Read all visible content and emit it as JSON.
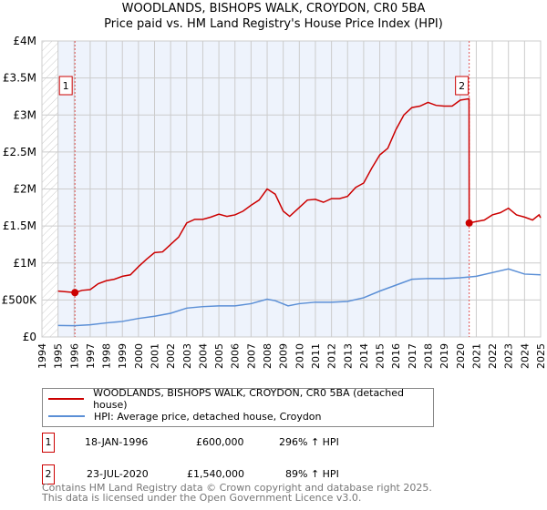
{
  "title": "WOODLANDS, BISHOPS WALK, CROYDON, CR0 5BA",
  "subtitle": "Price paid vs. HM Land Registry's House Price Index (HPI)",
  "chart_data": {
    "type": "line",
    "title": "WOODLANDS, BISHOPS WALK, CROYDON, CR0 5BA",
    "xlim": [
      1994,
      2025
    ],
    "ylim": [
      0,
      4000000
    ],
    "grid": true,
    "x_ticks": [
      "1994",
      "1995",
      "1996",
      "1997",
      "1998",
      "1999",
      "2000",
      "2001",
      "2002",
      "2003",
      "2004",
      "2005",
      "2006",
      "2007",
      "2008",
      "2009",
      "2010",
      "2011",
      "2012",
      "2013",
      "2014",
      "2015",
      "2016",
      "2017",
      "2018",
      "2019",
      "2020",
      "2021",
      "2022",
      "2023",
      "2024",
      "2025"
    ],
    "y_ticks": [
      {
        "v": 0,
        "label": "£0"
      },
      {
        "v": 500000,
        "label": "£500K"
      },
      {
        "v": 1000000,
        "label": "£1M"
      },
      {
        "v": 1500000,
        "label": "£1.5M"
      },
      {
        "v": 2000000,
        "label": "£2M"
      },
      {
        "v": 2500000,
        "label": "£2.5M"
      },
      {
        "v": 3000000,
        "label": "£3M"
      },
      {
        "v": 3500000,
        "label": "£3.5M"
      },
      {
        "v": 4000000,
        "label": "£4M"
      }
    ],
    "series": [
      {
        "name": "WOODLANDS, BISHOPS WALK, CROYDON, CR0 5BA (detached house)",
        "color": "#cc0000",
        "x": [
          1995,
          1996.05,
          1996.5,
          1997,
          1997.5,
          1998,
          1998.5,
          1999,
          1999.5,
          2000,
          2000.5,
          2001,
          2001.5,
          2002,
          2002.5,
          2003,
          2003.5,
          2004,
          2004.5,
          2005,
          2005.5,
          2006,
          2006.5,
          2007,
          2007.5,
          2008,
          2008.5,
          2009,
          2009.4,
          2010,
          2010.5,
          2011,
          2011.5,
          2012,
          2012.5,
          2013,
          2013.5,
          2014,
          2014.5,
          2015,
          2015.5,
          2016,
          2016.5,
          2017,
          2017.5,
          2018,
          2018.5,
          2019,
          2019.5,
          2020,
          2020.55,
          2020.56,
          2021,
          2021.5,
          2022,
          2022.5,
          2023,
          2023.5,
          2024,
          2024.5,
          2024.9,
          2025
        ],
        "y": [
          620000,
          600000,
          630000,
          640000,
          720000,
          760000,
          780000,
          820000,
          840000,
          950000,
          1050000,
          1140000,
          1150000,
          1250000,
          1350000,
          1540000,
          1590000,
          1590000,
          1620000,
          1660000,
          1630000,
          1650000,
          1700000,
          1780000,
          1850000,
          2000000,
          1930000,
          1700000,
          1630000,
          1750000,
          1850000,
          1860000,
          1820000,
          1870000,
          1870000,
          1900000,
          2020000,
          2080000,
          2280000,
          2460000,
          2550000,
          2800000,
          3000000,
          3100000,
          3120000,
          3170000,
          3130000,
          3120000,
          3120000,
          3200000,
          3220000,
          1540000,
          1560000,
          1580000,
          1650000,
          1680000,
          1740000,
          1650000,
          1620000,
          1580000,
          1650000,
          1610000
        ]
      },
      {
        "name": "HPI: Average price, detached house, Croydon",
        "color": "#5b8fd6",
        "x": [
          1995,
          1996,
          1997,
          1998,
          1999,
          2000,
          2001,
          2002,
          2003,
          2004,
          2005,
          2006,
          2007,
          2008,
          2008.5,
          2009.3,
          2010,
          2011,
          2012,
          2013,
          2014,
          2015,
          2016,
          2017,
          2018,
          2019,
          2020,
          2021,
          2022,
          2023,
          2024,
          2025
        ],
        "y": [
          155000,
          152000,
          165000,
          190000,
          210000,
          250000,
          280000,
          320000,
          390000,
          410000,
          420000,
          420000,
          450000,
          510000,
          490000,
          420000,
          450000,
          470000,
          470000,
          480000,
          530000,
          620000,
          700000,
          780000,
          790000,
          790000,
          800000,
          820000,
          870000,
          920000,
          850000,
          840000
        ]
      }
    ],
    "sales": [
      {
        "n": "1",
        "x": 1996.05,
        "y": 600000,
        "date": "18-JAN-1996",
        "price": "£600,000",
        "hpi": "296% ↑ HPI"
      },
      {
        "n": "2",
        "x": 2020.56,
        "y": 1540000,
        "date": "23-JUL-2020",
        "price": "£1,540,000",
        "hpi": "89% ↑ HPI"
      }
    ],
    "legend_placement": "below"
  },
  "footer1": "Contains HM Land Registry data © Crown copyright and database right 2025.",
  "footer2": "This data is licensed under the Open Government Licence v3.0."
}
